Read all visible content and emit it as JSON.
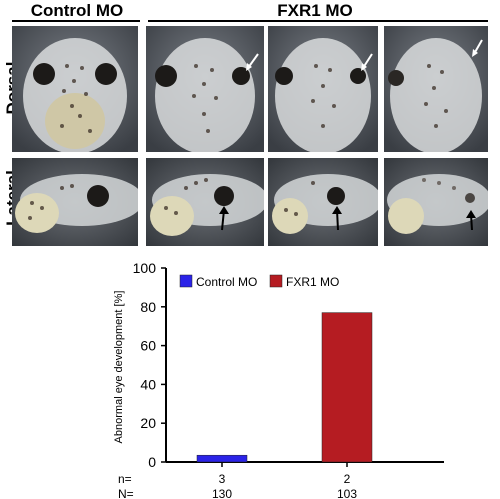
{
  "header": {
    "control_label": "Control MO",
    "fxr1_label": "FXR1 MO"
  },
  "rows": {
    "dorsal_label": "Dorsal",
    "lateral_label": "Lateral"
  },
  "chart_data": {
    "type": "bar",
    "categories": [
      "Control MO",
      "FXR1 MO"
    ],
    "values": [
      3.5,
      77
    ],
    "colors": [
      "#2b23e8",
      "#b51c22"
    ],
    "legend": [
      "Control MO",
      "FXR1 MO"
    ],
    "legend_position": "top",
    "ylabel": "Abnormal eye development [%]",
    "xlabel": "",
    "ylim": [
      0,
      100
    ],
    "yticks": [
      0,
      20,
      40,
      60,
      80,
      100
    ],
    "grid": false,
    "n_label": "n=",
    "N_label": "N=",
    "n_values": [
      "3",
      "2"
    ],
    "N_values": [
      "130",
      "103"
    ]
  }
}
